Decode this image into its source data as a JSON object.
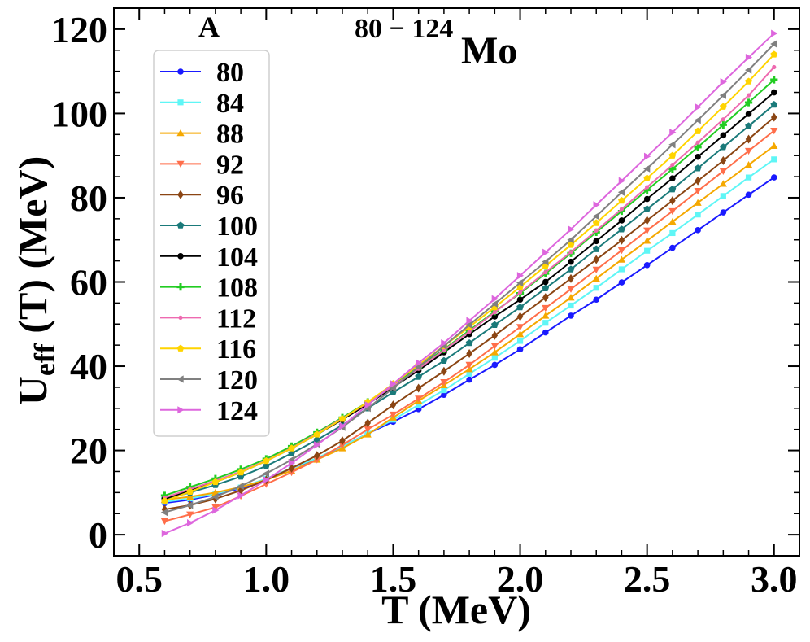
{
  "chart_data": {
    "type": "line",
    "panel_label": "A",
    "title": {
      "superscript": "80 − 124",
      "main": "Mo"
    },
    "xlabel": "T (MeV)",
    "ylabel": {
      "main": "U",
      "subscript": "eff",
      "rest": " (T) (MeV)"
    },
    "xlim": [
      0.4,
      3.1
    ],
    "ylim": [
      -5,
      125
    ],
    "x_ticks": [
      "0.5",
      "1.0",
      "1.5",
      "2.0",
      "2.5",
      "3.0"
    ],
    "y_ticks": [
      "0",
      "20",
      "40",
      "60",
      "80",
      "100",
      "120"
    ],
    "grid": false,
    "legend_position": "top-left",
    "x": [
      0.6,
      0.7,
      0.8,
      0.9,
      1.0,
      1.1,
      1.2,
      1.3,
      1.4,
      1.5,
      1.6,
      1.7,
      1.8,
      1.9,
      2.0,
      2.1,
      2.2,
      2.3,
      2.4,
      2.5,
      2.6,
      2.7,
      2.8,
      2.9,
      3.0
    ],
    "series": [
      {
        "name": "80",
        "color": "#1a1aff",
        "marker": "circle",
        "values": [
          7.5,
          8.3,
          9.5,
          11.0,
          13.0,
          15.8,
          18.0,
          21.0,
          24.0,
          26.8,
          29.8,
          33.2,
          36.8,
          40.3,
          44.0,
          48.0,
          52.0,
          55.8,
          59.9,
          64.0,
          68.1,
          72.3,
          76.5,
          80.7,
          84.8
        ]
      },
      {
        "name": "84",
        "color": "#5ff6f6",
        "marker": "square",
        "values": [
          7.8,
          8.6,
          9.7,
          11.2,
          13.3,
          15.8,
          18.2,
          21.0,
          24.0,
          27.3,
          30.8,
          34.3,
          38.2,
          42.0,
          46.0,
          50.3,
          54.4,
          58.6,
          63.0,
          67.4,
          71.6,
          76.0,
          80.4,
          84.8,
          89.1
        ]
      },
      {
        "name": "88",
        "color": "#f5a800",
        "marker": "triangle-up",
        "values": [
          8.3,
          9.0,
          10.0,
          11.3,
          13.0,
          15.2,
          17.8,
          20.5,
          23.8,
          27.8,
          31.8,
          35.5,
          39.3,
          43.3,
          47.6,
          52.0,
          56.3,
          60.8,
          65.3,
          69.8,
          74.3,
          78.8,
          83.3,
          87.8,
          92.3
        ]
      },
      {
        "name": "92",
        "color": "#ff6e4a",
        "marker": "triangle-down",
        "values": [
          3.2,
          4.8,
          6.5,
          9.2,
          12.0,
          14.8,
          17.8,
          21.3,
          25.0,
          28.5,
          32.3,
          36.2,
          40.3,
          44.8,
          49.3,
          53.8,
          58.3,
          62.9,
          67.5,
          72.2,
          76.8,
          81.6,
          86.3,
          91.1,
          95.9
        ]
      },
      {
        "name": "96",
        "color": "#8b4513",
        "marker": "diamond",
        "values": [
          6.0,
          7.0,
          8.5,
          10.5,
          13.0,
          15.8,
          18.8,
          22.3,
          26.5,
          30.8,
          34.8,
          38.8,
          43.0,
          47.3,
          51.8,
          56.3,
          60.8,
          65.3,
          69.9,
          74.6,
          79.3,
          84.0,
          88.8,
          93.9,
          99.1
        ]
      },
      {
        "name": "100",
        "color": "#1a7a7a",
        "marker": "pentagon",
        "values": [
          8.5,
          10.0,
          11.8,
          13.8,
          16.3,
          19.3,
          22.5,
          26.0,
          30.0,
          33.8,
          37.5,
          41.3,
          45.5,
          49.8,
          54.0,
          58.5,
          63.0,
          67.8,
          72.5,
          77.3,
          82.0,
          87.0,
          92.0,
          97.0,
          102.1
        ]
      },
      {
        "name": "104",
        "color": "#000000",
        "marker": "circle",
        "values": [
          8.5,
          10.5,
          12.5,
          14.8,
          17.5,
          20.5,
          23.8,
          27.3,
          31.0,
          35.0,
          39.0,
          43.3,
          47.6,
          51.8,
          55.8,
          60.0,
          64.8,
          69.7,
          74.6,
          79.7,
          84.6,
          89.7,
          94.8,
          99.9,
          105.0
        ]
      },
      {
        "name": "108",
        "color": "#22cc22",
        "marker": "plus",
        "values": [
          9.3,
          11.3,
          13.3,
          15.5,
          18.0,
          21.0,
          24.3,
          27.8,
          31.5,
          35.5,
          39.8,
          44.0,
          48.5,
          53.0,
          57.3,
          62.0,
          66.8,
          71.8,
          76.8,
          81.8,
          86.8,
          92.0,
          97.3,
          102.6,
          108.0
        ]
      },
      {
        "name": "112",
        "color": "#ee6ab0",
        "marker": "small-circle",
        "values": [
          8.8,
          10.8,
          12.8,
          15.0,
          17.6,
          20.6,
          24.0,
          27.6,
          31.3,
          35.3,
          39.4,
          43.8,
          48.2,
          52.8,
          57.5,
          62.3,
          67.1,
          72.2,
          77.3,
          82.5,
          87.8,
          93.1,
          98.6,
          104.3,
          111.0
        ]
      },
      {
        "name": "116",
        "color": "#ffd400",
        "marker": "pentagon",
        "values": [
          8.0,
          10.2,
          12.5,
          14.8,
          17.5,
          20.5,
          23.8,
          27.5,
          31.5,
          35.8,
          40.3,
          44.8,
          49.3,
          54.0,
          58.8,
          63.8,
          68.8,
          74.0,
          79.3,
          84.6,
          90.0,
          95.8,
          101.6,
          107.6,
          114.0
        ]
      },
      {
        "name": "120",
        "color": "#808080",
        "marker": "triangle-left",
        "values": [
          5.3,
          7.0,
          9.0,
          11.5,
          14.5,
          17.8,
          21.5,
          25.5,
          30.0,
          34.8,
          39.8,
          44.8,
          49.8,
          54.8,
          59.8,
          64.8,
          70.0,
          75.6,
          81.3,
          86.9,
          92.6,
          98.4,
          104.3,
          110.3,
          116.5
        ]
      },
      {
        "name": "124",
        "color": "#dd66dd",
        "marker": "triangle-right",
        "values": [
          0.3,
          2.8,
          5.8,
          9.3,
          13.0,
          17.0,
          21.3,
          25.8,
          30.8,
          35.8,
          40.8,
          45.5,
          50.8,
          56.0,
          61.5,
          67.0,
          72.5,
          78.3,
          84.0,
          89.8,
          95.5,
          101.5,
          107.5,
          113.3,
          119.0
        ]
      }
    ]
  }
}
